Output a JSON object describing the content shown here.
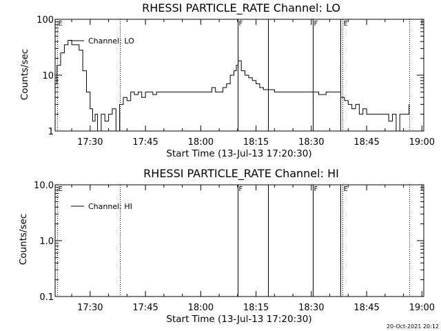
{
  "stamp": "20-Oct-2021 20:12",
  "chart_data": [
    {
      "type": "line",
      "title": "RHESSI PARTICLE_RATE Channel: LO",
      "xlabel": "Start Time (13-Jul-13 17:20:30)",
      "ylabel": "Counts/sec",
      "yscale": "log",
      "ylim": [
        1,
        100
      ],
      "xlim": [
        "17:20:30",
        "19:00:30"
      ],
      "yticks": [
        {
          "value": 1,
          "label": "1"
        },
        {
          "value": 10,
          "label": "10"
        },
        {
          "value": 100,
          "label": "100"
        }
      ],
      "xticks": [
        "17:30",
        "17:45",
        "18:00",
        "18:15",
        "18:30",
        "18:45",
        "19:00"
      ],
      "legend": {
        "label": "Channel: LO",
        "position": "top-left"
      },
      "markers": [
        {
          "time": "17:21:00",
          "label": "E",
          "style": "dotted"
        },
        {
          "time": "17:38:00",
          "label": "",
          "style": "dotted"
        },
        {
          "time": "18:10:00",
          "label": "F",
          "style": "solid"
        },
        {
          "time": "18:18:20",
          "label": "",
          "style": "solid"
        },
        {
          "time": "18:30:20",
          "label": "F",
          "style": "solid"
        },
        {
          "time": "18:37:50",
          "label": "",
          "style": "solid"
        },
        {
          "time": "18:38:30",
          "label": "E",
          "style": "dotted"
        },
        {
          "time": "18:56:30",
          "label": "",
          "style": "dotted"
        }
      ],
      "series": [
        {
          "name": "Channel: LO",
          "points": [
            [
              "17:20:30",
              7
            ],
            [
              "17:21:00",
              15
            ],
            [
              "17:22:00",
              25
            ],
            [
              "17:23:00",
              35
            ],
            [
              "17:24:00",
              42
            ],
            [
              "17:25:00",
              35
            ],
            [
              "17:26:00",
              35
            ],
            [
              "17:27:00",
              28
            ],
            [
              "17:28:00",
              12
            ],
            [
              "17:29:00",
              5
            ],
            [
              "17:30:00",
              2.5
            ],
            [
              "17:30:40",
              1.5
            ],
            [
              "17:31:20",
              2
            ],
            [
              "17:32:00",
              1
            ],
            [
              "17:33:00",
              2
            ],
            [
              "17:34:00",
              1.5
            ],
            [
              "17:35:00",
              2
            ],
            [
              "17:36:00",
              2.5
            ],
            [
              "17:37:00",
              1
            ],
            [
              "17:38:00",
              3
            ],
            [
              "17:39:00",
              4
            ],
            [
              "17:40:00",
              3.5
            ],
            [
              "17:41:00",
              5
            ],
            [
              "17:42:00",
              4.5
            ],
            [
              "17:43:00",
              5
            ],
            [
              "17:44:00",
              4
            ],
            [
              "17:45:00",
              5
            ],
            [
              "17:46:00",
              5
            ],
            [
              "17:47:00",
              4.5
            ],
            [
              "17:48:00",
              5
            ],
            [
              "17:50:00",
              5
            ],
            [
              "17:52:00",
              5
            ],
            [
              "17:54:00",
              5
            ],
            [
              "17:56:00",
              5
            ],
            [
              "17:58:00",
              5
            ],
            [
              "18:00:00",
              5
            ],
            [
              "18:02:00",
              5
            ],
            [
              "18:03:00",
              6
            ],
            [
              "18:04:00",
              5
            ],
            [
              "18:05:00",
              5
            ],
            [
              "18:06:00",
              6
            ],
            [
              "18:07:00",
              7
            ],
            [
              "18:08:00",
              10
            ],
            [
              "18:09:00",
              12
            ],
            [
              "18:09:40",
              15
            ],
            [
              "18:10:10",
              18
            ],
            [
              "18:11:00",
              12
            ],
            [
              "18:12:00",
              10
            ],
            [
              "18:13:00",
              9
            ],
            [
              "18:14:00",
              8
            ],
            [
              "18:15:00",
              7
            ],
            [
              "18:16:00",
              6
            ],
            [
              "18:17:00",
              5.5
            ],
            [
              "18:18:00",
              5.5
            ],
            [
              "18:20:00",
              5
            ],
            [
              "18:22:00",
              5
            ],
            [
              "18:24:00",
              5
            ],
            [
              "18:26:00",
              5
            ],
            [
              "18:28:00",
              5
            ],
            [
              "18:30:00",
              5
            ],
            [
              "18:32:00",
              4.5
            ],
            [
              "18:34:00",
              5
            ],
            [
              "18:36:00",
              5
            ],
            [
              "18:37:00",
              5
            ],
            [
              "18:38:00",
              4
            ],
            [
              "18:39:00",
              3.5
            ],
            [
              "18:40:00",
              3
            ],
            [
              "18:41:00",
              2.5
            ],
            [
              "18:42:00",
              3
            ],
            [
              "18:43:00",
              2
            ],
            [
              "18:44:00",
              2.5
            ],
            [
              "18:45:00",
              2
            ],
            [
              "18:46:00",
              2
            ],
            [
              "18:48:00",
              2
            ],
            [
              "18:50:00",
              2
            ],
            [
              "18:51:00",
              1.5
            ],
            [
              "18:52:00",
              2
            ],
            [
              "18:53:00",
              1
            ],
            [
              "18:54:00",
              2
            ],
            [
              "18:55:00",
              2
            ],
            [
              "18:56:30",
              3
            ]
          ]
        }
      ]
    },
    {
      "type": "line",
      "title": "RHESSI PARTICLE_RATE Channel: HI",
      "xlabel": "Start Time (13-Jul-13 17:20:30)",
      "ylabel": "Counts/sec",
      "yscale": "log",
      "ylim": [
        0.1,
        10
      ],
      "xlim": [
        "17:20:30",
        "19:00:30"
      ],
      "yticks": [
        {
          "value": 0.1,
          "label": "0.1"
        },
        {
          "value": 1,
          "label": "1.0"
        },
        {
          "value": 10,
          "label": "10.0"
        }
      ],
      "xticks": [
        "17:30",
        "17:45",
        "18:00",
        "18:15",
        "18:30",
        "18:45",
        "19:00"
      ],
      "legend": {
        "label": "Channel: HI",
        "position": "top-left"
      },
      "markers": [
        {
          "time": "17:21:00",
          "label": "E",
          "style": "dotted"
        },
        {
          "time": "17:38:00",
          "label": "",
          "style": "dotted"
        },
        {
          "time": "18:10:00",
          "label": "F",
          "style": "solid"
        },
        {
          "time": "18:18:20",
          "label": "",
          "style": "solid"
        },
        {
          "time": "18:30:20",
          "label": "F",
          "style": "solid"
        },
        {
          "time": "18:37:50",
          "label": "",
          "style": "solid"
        },
        {
          "time": "18:38:30",
          "label": "E",
          "style": "dotted"
        },
        {
          "time": "18:56:30",
          "label": "",
          "style": "dotted"
        }
      ],
      "series": [
        {
          "name": "Channel: HI",
          "points": []
        }
      ]
    }
  ]
}
